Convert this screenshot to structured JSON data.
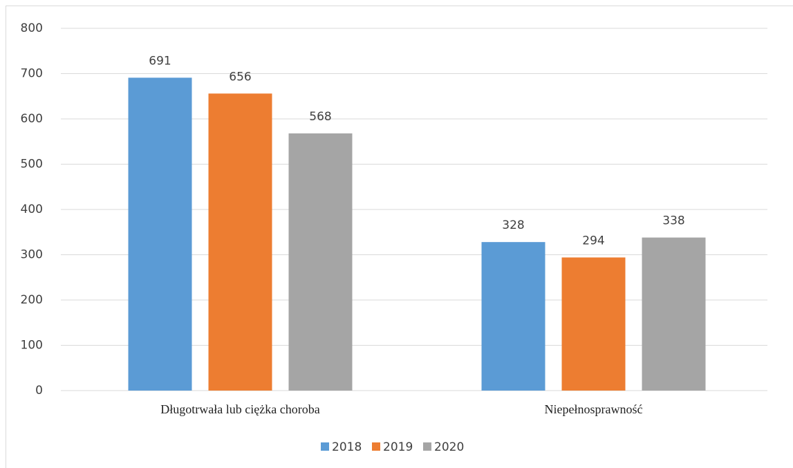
{
  "chart_data": {
    "type": "bar",
    "categories": [
      "Długotrwała lub ciężka choroba",
      "Niepełnosprawność"
    ],
    "series": [
      {
        "name": "2018",
        "color": "#5b9bd5",
        "values": [
          691,
          328
        ]
      },
      {
        "name": "2019",
        "color": "#ed7d31",
        "values": [
          656,
          294
        ]
      },
      {
        "name": "2020",
        "color": "#a5a5a5",
        "values": [
          568,
          338
        ]
      }
    ],
    "ylim": [
      0,
      800
    ],
    "yticks": [
      0,
      100,
      200,
      300,
      400,
      500,
      600,
      700,
      800
    ],
    "grid": true,
    "legend": "bottom"
  }
}
